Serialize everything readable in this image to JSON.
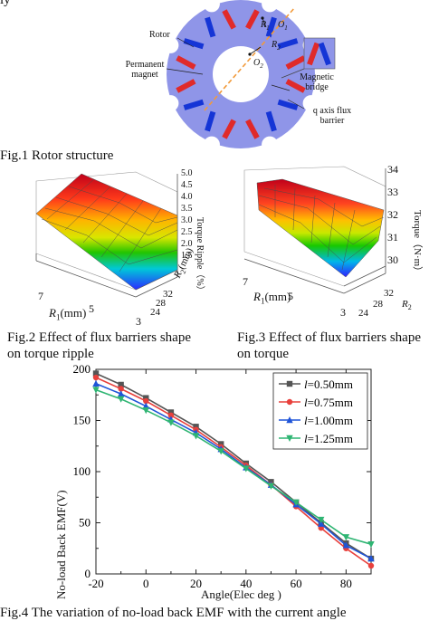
{
  "top_fragment": "ly",
  "fig1": {
    "caption": "Fig.1 Rotor structure",
    "labels": {
      "rotor": "Rotor",
      "pm_line1": "Permanent",
      "pm_line2": "magnet",
      "bridge_line1": "Magnetic",
      "bridge_line2": "bridge",
      "q_line1": "q axis  flux",
      "q_line2": "barrier",
      "r1": "R",
      "r1_sub": "1",
      "o1": "O",
      "o1_sub": "1",
      "r2": "R",
      "r2_sub": "2",
      "o2": "O",
      "o2_sub": "2"
    },
    "colors": {
      "rotor": "#8f95e8",
      "magnet_red": "#e02a2a",
      "magnet_blue": "#1535d6",
      "axis": "#f29a3a"
    }
  },
  "fig2": {
    "caption_line1": "Fig.2 Effect of flux barriers shape",
    "caption_line2": "on torque ripple",
    "zlabel": "Torque Ripple（%）",
    "zticks": [
      "5.0",
      "4.5",
      "4.0",
      "3.5",
      "3.0",
      "2.5",
      "2.0",
      "1.5"
    ],
    "x_ticks": [
      "7",
      "5",
      "3"
    ],
    "x_label": "R",
    "x_label_sub": "1",
    "x_label_unit": "(mm)",
    "y_ticks": [
      "32",
      "28",
      "24"
    ],
    "y_label": "R",
    "y_label_sub": "2",
    "y_label_unit": "(mm)"
  },
  "fig3": {
    "caption_line1": "Fig.3 Effect of flux barriers shape",
    "caption_line2": "on torque",
    "zlabel": "Torque（N·m）",
    "zticks": [
      "34",
      "33",
      "32",
      "31",
      "30"
    ],
    "x_ticks": [
      "7",
      "5",
      "3"
    ],
    "x_label": "R",
    "x_label_sub": "1",
    "x_label_unit": "(mm)",
    "y_ticks": [
      "32",
      "28",
      "24"
    ],
    "y_label": "R",
    "y_label_sub": "2"
  },
  "fig4": {
    "caption": "Fig.4 The variation of no-load back EMF with the current angle",
    "chart_data": {
      "type": "line",
      "title": "",
      "xlabel": "Angle(Elec deg )",
      "ylabel": "No-load Back EMF(V)",
      "xlim": [
        -20,
        90
      ],
      "ylim": [
        0,
        200
      ],
      "xticks": [
        "-20",
        "0",
        "20",
        "40",
        "60",
        "80"
      ],
      "yticks": [
        "0",
        "50",
        "100",
        "150",
        "200"
      ],
      "grid": false,
      "legend": "top-right",
      "x": [
        -20,
        -10,
        0,
        10,
        20,
        30,
        40,
        50,
        60,
        70,
        80,
        90
      ],
      "series": [
        {
          "name": "l=0.50mm",
          "legend_italic": "l",
          "legend_rest": "=0.50mm",
          "color": "#555555",
          "marker": "square",
          "values": [
            196,
            185,
            172,
            158,
            144,
            127,
            108,
            90,
            70,
            50,
            30,
            15
          ]
        },
        {
          "name": "l=0.75mm",
          "legend_italic": "l",
          "legend_rest": "=0.75mm",
          "color": "#e8403c",
          "marker": "circle",
          "values": [
            192,
            181,
            169,
            155,
            141,
            124,
            106,
            87,
            66,
            45,
            25,
            8
          ]
        },
        {
          "name": "l=1.00mm",
          "legend_italic": "l",
          "legend_rest": "=1.00mm",
          "color": "#1f54d8",
          "marker": "triangle-up",
          "values": [
            186,
            176,
            164,
            151,
            138,
            122,
            104,
            87,
            68,
            49,
            28,
            15
          ]
        },
        {
          "name": "l=1.25mm",
          "legend_italic": "l",
          "legend_rest": "=1.25mm",
          "color": "#2fb573",
          "marker": "triangle-down",
          "values": [
            180,
            171,
            160,
            148,
            135,
            120,
            103,
            86,
            70,
            53,
            36,
            29
          ]
        }
      ]
    }
  }
}
